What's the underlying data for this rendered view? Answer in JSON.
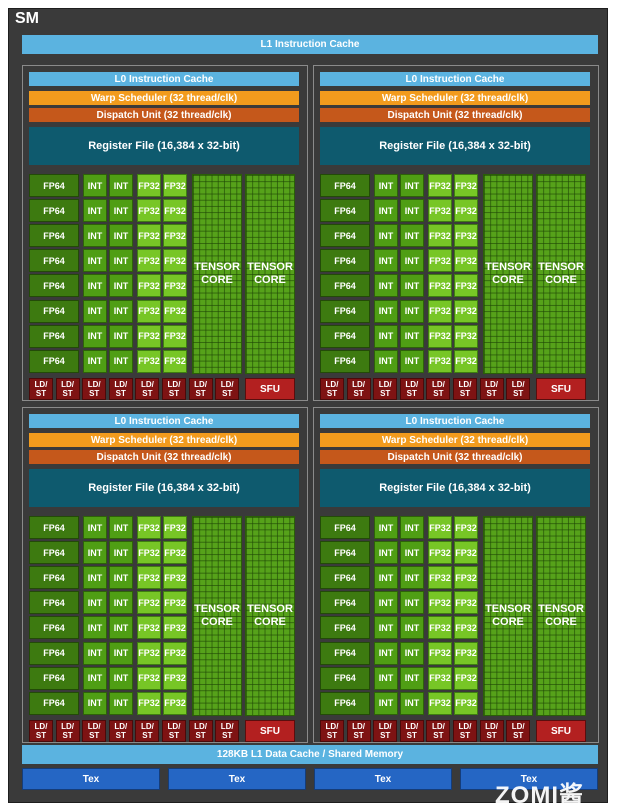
{
  "sm": {
    "title": "SM",
    "l1_instruction_cache": "L1 Instruction Cache",
    "l1_data_cache": "128KB L1 Data Cache / Shared Memory",
    "tex_units": [
      "Tex",
      "Tex",
      "Tex",
      "Tex"
    ],
    "watermark": "ZOMI酱"
  },
  "partition": {
    "l0_cache": "L0 Instruction Cache",
    "warp_scheduler": "Warp Scheduler (32 thread/clk)",
    "dispatch_unit": "Dispatch Unit (32 thread/clk)",
    "register_file": "Register File (16,384 x 32-bit)",
    "fp64": "FP64",
    "int": "INT",
    "fp32": "FP32",
    "tensor_line1": "TENSOR",
    "tensor_line2": "CORE",
    "ldst_line1": "LD/",
    "ldst_line2": "ST",
    "sfu": "SFU",
    "rows_per_partition": 8,
    "ldst_units_per_partition": 8
  },
  "colors": {
    "sm_background": "#3a3a3a",
    "cache_blue": "#5bb3e0",
    "warp_orange": "#f29b1d",
    "dispatch_orange": "#c5581b",
    "register_teal": "#0e5a6e",
    "fp64_green": "#3d7a10",
    "int_green": "#4f9e14",
    "fp32_green": "#77c626",
    "tensor_green": "#56a21a",
    "ldst_red": "#7e1313",
    "sfu_red": "#b32020",
    "tex_blue": "#2566c4"
  }
}
